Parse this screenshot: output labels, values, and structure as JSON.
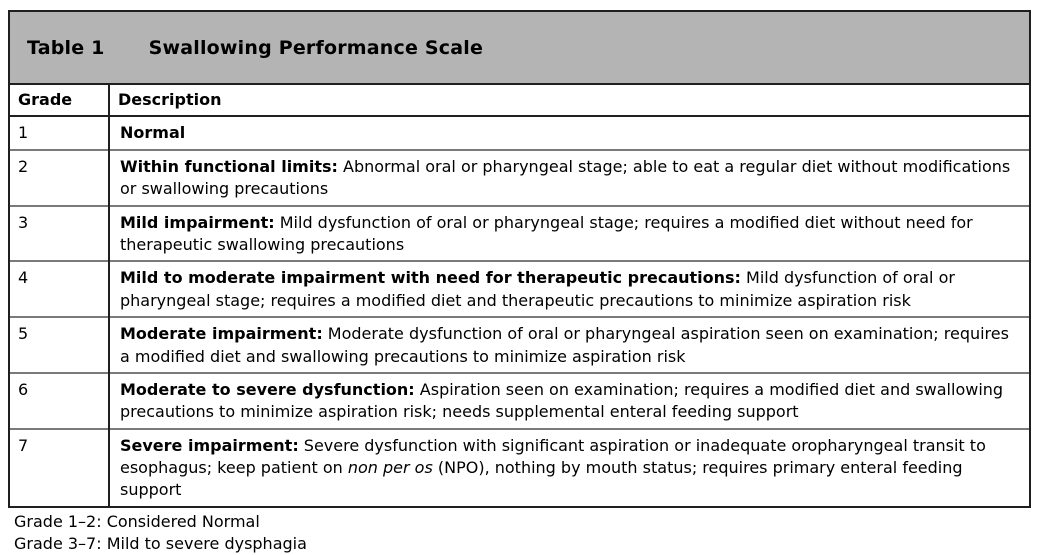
{
  "table": {
    "label": "Table 1",
    "title": "Swallowing Performance Scale",
    "columns": [
      "Grade",
      "Description"
    ],
    "rows": [
      {
        "grade": "1",
        "term": "Normal",
        "parts": []
      },
      {
        "grade": "2",
        "term": "Within functional limits:",
        "parts": [
          {
            "text": " Abnormal oral or pharyngeal stage; able to eat a regular diet without modifications or swallowing precautions",
            "italic": false
          }
        ]
      },
      {
        "grade": "3",
        "term": "Mild impairment:",
        "parts": [
          {
            "text": " Mild dysfunction of oral or pharyngeal stage; requires a modified diet without need for therapeutic swallowing precautions",
            "italic": false
          }
        ]
      },
      {
        "grade": "4",
        "term": "Mild to moderate impairment with need for therapeutic precautions:",
        "parts": [
          {
            "text": " Mild dysfunction of oral or pharyngeal stage; requires a modified diet and therapeutic precautions to minimize aspiration risk",
            "italic": false
          }
        ]
      },
      {
        "grade": "5",
        "term": "Moderate impairment:",
        "parts": [
          {
            "text": " Moderate dysfunction of oral or pharyngeal aspiration seen on examination; requires a modified diet and swallowing precautions to minimize aspiration risk",
            "italic": false
          }
        ]
      },
      {
        "grade": "6",
        "term": "Moderate to severe dysfunction:",
        "parts": [
          {
            "text": " Aspiration seen on examination; requires a modified diet and swallowing precautions to minimize aspiration risk; needs supplemental enteral feeding support",
            "italic": false
          }
        ]
      },
      {
        "grade": "7",
        "term": "Severe impairment:",
        "parts": [
          {
            "text": " Severe dysfunction with significant aspiration or inadequate oropharyngeal transit to esophagus; keep patient on ",
            "italic": false
          },
          {
            "text": "non per os",
            "italic": true
          },
          {
            "text": " (NPO), nothing by mouth status; requires primary enteral feeding support",
            "italic": false
          }
        ]
      }
    ],
    "footnotes": [
      "Grade 1–2: Considered Normal",
      "Grade 3–7: Mild to severe dysphagia"
    ]
  },
  "colors": {
    "title_bar_bg": "#b4b4b4",
    "border_dark": "#1f1f1f",
    "row_divider": "#7a7a7a",
    "text": "#000000",
    "background": "#ffffff"
  }
}
